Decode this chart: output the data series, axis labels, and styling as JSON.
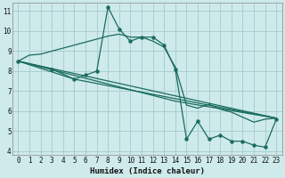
{
  "xlabel": "Humidex (Indice chaleur)",
  "bg_color": "#ceeaea",
  "grid_color": "#aacfcf",
  "line_color": "#1a6b5e",
  "xlim": [
    -0.5,
    23.5
  ],
  "ylim": [
    3.8,
    11.4
  ],
  "xticks": [
    0,
    1,
    2,
    3,
    4,
    5,
    6,
    7,
    8,
    9,
    10,
    11,
    12,
    13,
    14,
    15,
    16,
    17,
    18,
    19,
    20,
    21,
    22,
    23
  ],
  "yticks": [
    4,
    5,
    6,
    7,
    8,
    9,
    10,
    11
  ],
  "smooth_line": {
    "x": [
      0,
      1,
      2,
      3,
      4,
      5,
      6,
      7,
      8,
      9,
      10,
      11,
      12,
      13,
      14,
      15,
      16,
      17,
      18,
      19,
      20,
      21,
      22,
      23
    ],
    "y": [
      8.5,
      8.8,
      8.85,
      9.0,
      9.15,
      9.3,
      9.45,
      9.6,
      9.75,
      9.85,
      9.7,
      9.7,
      9.5,
      9.2,
      8.2,
      6.3,
      6.15,
      6.35,
      6.1,
      5.95,
      5.7,
      5.45,
      5.6,
      5.65
    ]
  },
  "jagged_line": {
    "x": [
      0,
      3,
      5,
      6,
      7,
      8,
      9,
      10,
      11,
      12,
      13,
      14,
      15,
      16,
      17,
      18,
      19,
      20,
      21,
      22,
      23
    ],
    "y": [
      8.5,
      8.1,
      7.6,
      7.8,
      8.0,
      11.2,
      10.1,
      9.5,
      9.7,
      9.7,
      9.3,
      8.1,
      4.6,
      5.5,
      4.6,
      4.8,
      4.5,
      4.5,
      4.3,
      4.2,
      5.6
    ]
  },
  "fan_lines": [
    {
      "x": [
        0,
        5,
        23
      ],
      "y": [
        8.5,
        7.6,
        5.65
      ]
    },
    {
      "x": [
        0,
        14,
        23
      ],
      "y": [
        8.5,
        6.5,
        5.65
      ]
    },
    {
      "x": [
        0,
        23
      ],
      "y": [
        8.5,
        5.65
      ]
    }
  ]
}
